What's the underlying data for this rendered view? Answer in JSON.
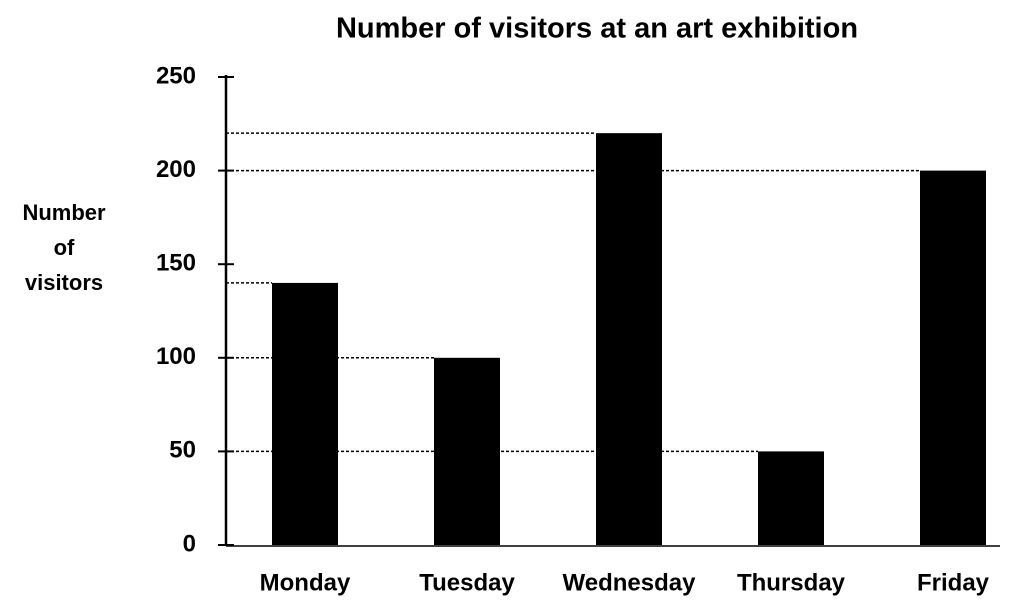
{
  "chart_data": {
    "type": "bar",
    "title": "Number of visitors at an art exhibition",
    "y_label": [
      "Number",
      "of",
      "visitors"
    ],
    "categories": [
      "Monday",
      "Tuesday",
      "Wednesday",
      "Thursday",
      "Friday"
    ],
    "values": [
      140,
      100,
      220,
      50,
      200
    ],
    "color": "#000000",
    "ylim": [
      0,
      250
    ],
    "yticks": [
      0,
      50,
      100,
      150,
      200,
      250
    ],
    "guide_lines": true
  }
}
